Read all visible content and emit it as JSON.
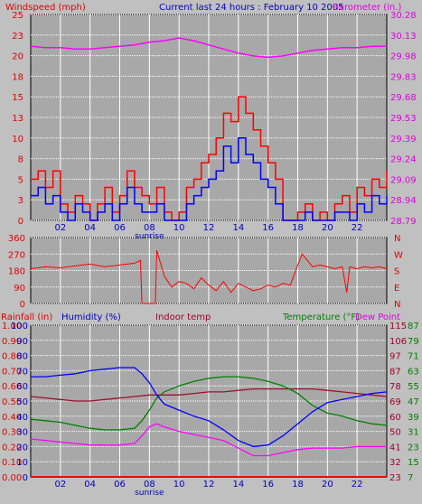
{
  "header": {
    "left_label": "Windspeed (mph)",
    "center_label": "Current last 24 hours : February 10 2005",
    "right_label": "Barometer (in.)"
  },
  "colors": {
    "background": "#c0c0c0",
    "plot_bg": "#a8a8a8",
    "grid": "#ffffff",
    "wind_red": "#ff0000",
    "wind_blue": "#0000ff",
    "barometer": "#ff00ff",
    "direction": "#ff0000",
    "humidity": "#0000ff",
    "indoor": "#a01030",
    "temperature": "#008000",
    "dewpoint": "#ff00ff",
    "rain": "#ff0000",
    "label_blue": "#0000c0",
    "label_red": "#e00000",
    "label_magenta": "#e000e0",
    "label_green": "#008000",
    "label_maroon": "#a00030"
  },
  "chart_data": [
    {
      "type": "line",
      "name": "wind-barometer",
      "x_ticks": [
        "02",
        "04",
        "06",
        "08",
        "10",
        "12",
        "14",
        "16",
        "18",
        "20",
        "22"
      ],
      "x_range": [
        0,
        24
      ],
      "sunrise_label": "sunrise",
      "sunrise_x": 8,
      "y_left_ticks": [
        "25",
        "23",
        "20",
        "18",
        "15",
        "13",
        "10",
        "8",
        "5",
        "3",
        "0"
      ],
      "y_left_range": [
        0,
        25
      ],
      "y_right_ticks": [
        "30.28",
        "30.13",
        "29.98",
        "29.83",
        "29.68",
        "29.53",
        "29.39",
        "29.24",
        "29.09",
        "28.94",
        "28.79"
      ],
      "y_right_range": [
        28.79,
        30.28
      ],
      "barometer": {
        "x": [
          0,
          1,
          2,
          3,
          4,
          5,
          6,
          7,
          8,
          9,
          10,
          11,
          12,
          13,
          14,
          15,
          16,
          17,
          18,
          19,
          20,
          21,
          22,
          23,
          24
        ],
        "y": [
          30.05,
          30.04,
          30.04,
          30.03,
          30.03,
          30.04,
          30.05,
          30.06,
          30.08,
          30.09,
          30.11,
          30.09,
          30.06,
          30.03,
          30.0,
          29.98,
          29.97,
          29.98,
          30.0,
          30.02,
          30.03,
          30.04,
          30.04,
          30.05,
          30.05
        ]
      },
      "gust": {
        "x": [
          0,
          0.5,
          1,
          1.5,
          2,
          2.5,
          3,
          3.5,
          4,
          4.5,
          5,
          5.5,
          6,
          6.5,
          7,
          7.5,
          8,
          8.5,
          9,
          9.5,
          10,
          10.5,
          11,
          11.5,
          12,
          12.5,
          13,
          13.5,
          14,
          14.5,
          15,
          15.5,
          16,
          16.5,
          17,
          17.5,
          18,
          18.5,
          19,
          19.5,
          20,
          20.5,
          21,
          21.5,
          22,
          22.5,
          23,
          23.5,
          24
        ],
        "y": [
          5,
          6,
          4,
          6,
          2,
          1,
          3,
          2,
          0,
          2,
          4,
          1,
          3,
          6,
          4,
          3,
          2,
          4,
          1,
          0,
          1,
          4,
          5,
          7,
          8,
          10,
          13,
          12,
          15,
          13,
          11,
          9,
          7,
          5,
          0,
          0,
          1,
          2,
          0,
          1,
          0,
          2,
          3,
          1,
          4,
          3,
          5,
          4,
          6
        ]
      },
      "average": {
        "x": [
          0,
          0.5,
          1,
          1.5,
          2,
          2.5,
          3,
          3.5,
          4,
          4.5,
          5,
          5.5,
          6,
          6.5,
          7,
          7.5,
          8,
          8.5,
          9,
          9.5,
          10,
          10.5,
          11,
          11.5,
          12,
          12.5,
          13,
          13.5,
          14,
          14.5,
          15,
          15.5,
          16,
          16.5,
          17,
          17.5,
          18,
          18.5,
          19,
          19.5,
          20,
          20.5,
          21,
          21.5,
          22,
          22.5,
          23,
          23.5,
          24
        ],
        "y": [
          3,
          4,
          2,
          3,
          1,
          0,
          2,
          1,
          0,
          1,
          2,
          0,
          2,
          4,
          2,
          1,
          1,
          2,
          0,
          0,
          0,
          2,
          3,
          4,
          5,
          6,
          9,
          7,
          10,
          8,
          7,
          5,
          4,
          2,
          0,
          0,
          0,
          1,
          0,
          0,
          0,
          1,
          1,
          0,
          2,
          1,
          3,
          2,
          3
        ]
      }
    },
    {
      "type": "line",
      "name": "wind-direction",
      "y_left_ticks": [
        "360",
        "270",
        "180",
        "90",
        "0"
      ],
      "y_left_range": [
        0,
        360
      ],
      "y_right_ticks": [
        "N",
        "W",
        "S",
        "E",
        "N"
      ],
      "direction": {
        "x": [
          0,
          1,
          2,
          3,
          4,
          5,
          6,
          7,
          7.4,
          7.5,
          7.6,
          8.4,
          8.5,
          9,
          9.5,
          10,
          10.5,
          11,
          11.5,
          12,
          12.5,
          13,
          13.5,
          14,
          14.5,
          15,
          15.5,
          16,
          16.5,
          17,
          17.5,
          18,
          18.3,
          18.5,
          19,
          19.5,
          20,
          20.5,
          21,
          21.3,
          21.5,
          22,
          22.5,
          23,
          23.5,
          24
        ],
        "y": [
          190,
          200,
          195,
          205,
          215,
          200,
          210,
          220,
          235,
          0,
          0,
          0,
          290,
          150,
          90,
          120,
          110,
          80,
          140,
          100,
          70,
          120,
          60,
          110,
          90,
          70,
          80,
          100,
          90,
          110,
          100,
          210,
          270,
          250,
          200,
          210,
          200,
          190,
          200,
          60,
          200,
          190,
          200,
          195,
          200,
          190
        ]
      }
    },
    {
      "type": "line",
      "name": "temperature-humidity",
      "header_labels": {
        "rainfall": "Rainfall (in)",
        "humidity": "Humidity (%)",
        "indoor": "Indoor temp",
        "temperature": "Temperature (°F)",
        "dewpoint": "Dew Point"
      },
      "y_rain_ticks": [
        "1.00",
        "0.90",
        "0.80",
        "0.70",
        "0.60",
        "0.50",
        "0.40",
        "0.30",
        "0.20",
        "0.10",
        "0.00"
      ],
      "y_humidity_ticks": [
        "100",
        "90",
        "80",
        "70",
        "60",
        "50",
        "40",
        "30",
        "20",
        "10",
        "0"
      ],
      "y_indoor_ticks": [
        "115",
        "106",
        "97",
        "87",
        "78",
        "69",
        "60",
        "50",
        "41",
        "32",
        "23"
      ],
      "y_temp_ticks": [
        "87",
        "79",
        "71",
        "63",
        "55",
        "47",
        "39",
        "31",
        "23",
        "15",
        "7"
      ],
      "humidity": {
        "x": [
          0,
          1,
          2,
          3,
          4,
          5,
          6,
          7,
          7.5,
          8,
          8.5,
          9,
          10,
          11,
          12,
          13,
          14,
          15,
          16,
          17,
          18,
          19,
          20,
          21,
          22,
          23,
          24
        ],
        "y": [
          66,
          66,
          67,
          68,
          70,
          71,
          72,
          72,
          68,
          62,
          54,
          48,
          44,
          40,
          37,
          31,
          24,
          20,
          21,
          27,
          35,
          43,
          49,
          51,
          53,
          55,
          56
        ]
      },
      "indoor": {
        "x": [
          0,
          1,
          2,
          3,
          4,
          5,
          6,
          7,
          8,
          9,
          10,
          11,
          12,
          13,
          14,
          15,
          16,
          17,
          18,
          19,
          20,
          21,
          22,
          23,
          24
        ],
        "y": [
          53,
          52,
          51,
          50,
          50,
          51,
          52,
          53,
          54,
          54,
          54,
          55,
          56,
          56,
          57,
          58,
          58,
          58,
          58,
          58,
          57,
          56,
          55,
          54,
          53
        ]
      },
      "temperature": {
        "x": [
          0,
          1,
          2,
          3,
          4,
          5,
          6,
          7,
          7.5,
          8,
          8.5,
          9,
          10,
          11,
          12,
          13,
          14,
          15,
          16,
          17,
          18,
          19,
          20,
          21,
          22,
          23,
          24
        ],
        "y": [
          38,
          37,
          36,
          34,
          32,
          31,
          31,
          32,
          37,
          44,
          52,
          56,
          60,
          63,
          65,
          66,
          66,
          65,
          63,
          60,
          55,
          47,
          42,
          40,
          37,
          35,
          34
        ]
      },
      "dewpoint": {
        "x": [
          0,
          1,
          2,
          3,
          4,
          5,
          6,
          7,
          7.5,
          8,
          8.5,
          9,
          10,
          11,
          12,
          13,
          14,
          15,
          16,
          17,
          18,
          19,
          20,
          21,
          22,
          23,
          24
        ],
        "y": [
          25,
          24,
          23,
          22,
          21,
          21,
          21,
          22,
          27,
          33,
          35,
          33,
          30,
          28,
          26,
          24,
          19,
          14,
          14,
          16,
          18,
          19,
          19,
          19,
          20,
          20,
          20
        ]
      },
      "rain": {
        "x": [
          0,
          24
        ],
        "y": [
          0,
          0
        ]
      }
    }
  ]
}
